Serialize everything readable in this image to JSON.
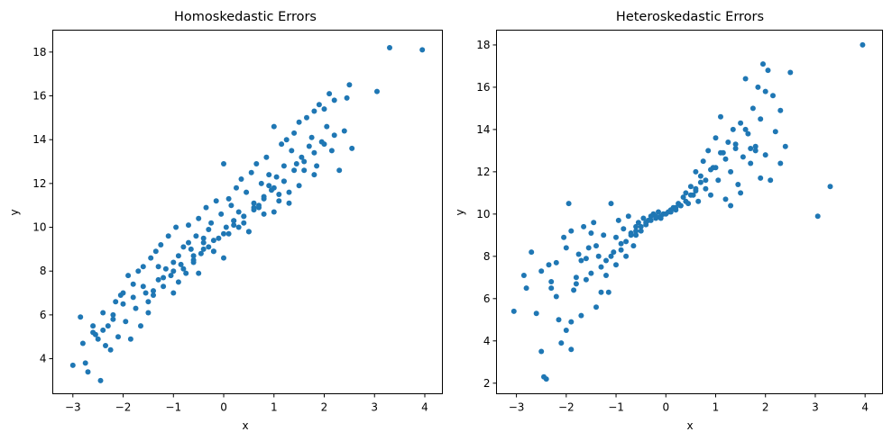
{
  "chart_data": [
    {
      "type": "scatter",
      "title": "Homoskedastic Errors",
      "xlabel": "x",
      "ylabel": "y",
      "xlim": [
        -3.4,
        4.35
      ],
      "ylim": [
        2.4,
        19.0
      ],
      "xticks": [
        -3,
        -2,
        -1,
        0,
        1,
        2,
        3,
        4
      ],
      "yticks": [
        4,
        6,
        8,
        10,
        12,
        14,
        16,
        18
      ],
      "color": "#1f77b4",
      "grid": false,
      "series": [
        {
          "x": [
            -3.0,
            -2.85,
            -2.75,
            -2.7,
            -2.6,
            -2.55,
            -2.5,
            -2.45,
            -2.4,
            -2.35,
            -2.3,
            -2.25,
            -2.2,
            -2.15,
            -2.1,
            -2.05,
            -2.0,
            -1.95,
            -1.9,
            -1.85,
            -1.8,
            -1.75,
            -1.7,
            -1.65,
            -1.6,
            -1.55,
            -1.5,
            -1.45,
            -1.4,
            -1.35,
            -1.3,
            -1.25,
            -1.2,
            -1.15,
            -1.1,
            -1.05,
            -1.0,
            -0.95,
            -0.9,
            -0.85,
            -0.8,
            -0.75,
            -0.7,
            -0.65,
            -0.6,
            -0.55,
            -0.5,
            -0.45,
            -0.4,
            -0.35,
            -0.3,
            -0.25,
            -0.2,
            -0.15,
            -0.1,
            -0.05,
            0.0,
            0.05,
            0.1,
            0.15,
            0.2,
            0.25,
            0.3,
            0.35,
            0.4,
            0.45,
            0.5,
            0.55,
            0.6,
            0.65,
            0.7,
            0.75,
            0.8,
            0.85,
            0.9,
            0.95,
            1.0,
            1.05,
            1.1,
            1.15,
            1.2,
            1.25,
            1.3,
            1.35,
            1.4,
            1.45,
            1.5,
            1.55,
            1.6,
            1.65,
            1.7,
            1.75,
            1.8,
            1.85,
            1.9,
            1.95,
            2.0,
            2.05,
            2.1,
            2.15,
            2.2,
            2.3,
            2.4,
            2.45,
            2.5,
            2.55,
            3.05,
            3.3,
            3.95,
            -2.8,
            -2.6,
            -2.4,
            -2.2,
            -2.0,
            -1.8,
            -1.6,
            -1.4,
            -1.2,
            -1.0,
            -0.8,
            -0.6,
            -0.4,
            -0.2,
            0.0,
            0.2,
            0.4,
            0.6,
            0.8,
            1.0,
            1.2,
            1.4,
            1.6,
            1.8,
            2.0,
            2.2,
            -1.5,
            -1.0,
            -0.5,
            0.0,
            0.5,
            1.0,
            1.5,
            -1.3,
            -0.7,
            -0.2,
            0.3,
            0.8,
            1.3,
            1.8,
            -0.9,
            -0.3,
            0.2,
            0.7,
            1.2,
            -0.6,
            0.1,
            0.6,
            1.1,
            -0.4,
            0.4,
            0.9
          ],
          "y": [
            3.7,
            5.9,
            3.8,
            3.4,
            5.5,
            5.1,
            4.9,
            3.0,
            5.3,
            4.6,
            5.5,
            4.4,
            6.0,
            6.6,
            5.0,
            6.9,
            7.0,
            5.7,
            7.8,
            4.9,
            7.4,
            6.3,
            8.0,
            5.5,
            8.2,
            7.0,
            6.6,
            8.6,
            6.9,
            8.9,
            7.6,
            9.2,
            7.3,
            8.1,
            9.6,
            7.8,
            8.4,
            10.0,
            8.7,
            8.3,
            9.1,
            7.9,
            10.1,
            9.0,
            8.5,
            9.6,
            10.4,
            8.8,
            9.3,
            10.9,
            9.9,
            10.2,
            8.9,
            11.2,
            9.5,
            10.6,
            12.9,
            10.0,
            11.3,
            11.0,
            10.3,
            11.8,
            10.7,
            12.2,
            10.5,
            11.6,
            9.8,
            12.5,
            11.1,
            12.9,
            10.9,
            12.0,
            11.4,
            13.2,
            12.4,
            11.7,
            14.6,
            12.3,
            11.2,
            13.8,
            12.8,
            14.0,
            11.6,
            13.5,
            14.3,
            12.9,
            14.8,
            13.2,
            12.6,
            15.0,
            13.7,
            14.1,
            15.3,
            12.8,
            15.6,
            13.9,
            15.4,
            14.6,
            16.1,
            13.5,
            15.8,
            12.6,
            14.4,
            15.9,
            16.5,
            13.6,
            16.2,
            18.2,
            18.1,
            4.7,
            5.2,
            6.1,
            5.8,
            6.5,
            6.8,
            7.3,
            7.1,
            7.7,
            8.0,
            8.1,
            8.7,
            9.0,
            9.4,
            9.7,
            10.1,
            10.5,
            10.9,
            11.3,
            11.8,
            12.1,
            12.6,
            13.0,
            13.4,
            13.8,
            14.2,
            6.1,
            7.0,
            7.9,
            8.6,
            9.8,
            10.7,
            11.9,
            8.2,
            9.3,
            8.9,
            10.0,
            10.6,
            11.1,
            12.4,
            7.5,
            9.1,
            10.3,
            11.0,
            12.1,
            8.4,
            9.7,
            10.8,
            11.5,
            9.5,
            10.2,
            11.9
          ]
        }
      ]
    },
    {
      "type": "scatter",
      "title": "Heteroskedastic Errors",
      "xlabel": "x",
      "ylabel": "y",
      "xlim": [
        -3.4,
        4.35
      ],
      "ylim": [
        1.5,
        18.7
      ],
      "xticks": [
        -3,
        -2,
        -1,
        0,
        1,
        2,
        3,
        4
      ],
      "yticks": [
        2,
        4,
        6,
        8,
        10,
        12,
        14,
        16,
        18
      ],
      "color": "#1f77b4",
      "grid": false,
      "series": [
        {
          "x": [
            -3.05,
            -2.85,
            -2.8,
            -2.7,
            -2.6,
            -2.5,
            -2.45,
            -2.4,
            -2.35,
            -2.3,
            -2.2,
            -2.15,
            -2.1,
            -2.05,
            -2.0,
            -1.95,
            -1.9,
            -1.9,
            -1.85,
            -1.8,
            -1.75,
            -1.7,
            -1.65,
            -1.6,
            -1.55,
            -1.5,
            -1.45,
            -1.4,
            -1.35,
            -1.3,
            -1.25,
            -1.2,
            -1.15,
            -1.1,
            -1.05,
            -1.0,
            -0.95,
            -0.9,
            -0.85,
            -0.8,
            -0.75,
            -0.7,
            -0.65,
            -0.6,
            -0.55,
            -0.5,
            -0.45,
            -0.4,
            -0.35,
            -0.3,
            -0.25,
            -0.2,
            -0.15,
            -0.1,
            -0.05,
            0.0,
            0.05,
            0.1,
            0.15,
            0.2,
            0.25,
            0.3,
            0.35,
            0.4,
            0.45,
            0.5,
            0.55,
            0.6,
            0.65,
            0.7,
            0.75,
            0.8,
            0.85,
            0.9,
            0.95,
            1.0,
            1.05,
            1.1,
            1.15,
            1.2,
            1.25,
            1.3,
            1.35,
            1.4,
            1.45,
            1.5,
            1.55,
            1.6,
            1.65,
            1.7,
            1.75,
            1.8,
            1.85,
            1.9,
            1.95,
            2.0,
            2.05,
            2.1,
            2.15,
            2.2,
            2.3,
            2.4,
            2.5,
            3.05,
            3.3,
            3.95,
            -2.5,
            -2.2,
            -2.0,
            -1.8,
            -1.6,
            -1.4,
            -1.2,
            -1.0,
            -0.8,
            -0.6,
            -0.4,
            -0.2,
            0.2,
            0.4,
            0.6,
            0.8,
            1.0,
            1.2,
            1.4,
            1.6,
            1.8,
            2.0,
            -1.7,
            -1.3,
            -0.9,
            -0.5,
            0.5,
            0.9,
            1.3,
            1.7,
            -1.1,
            -0.7,
            -0.3,
            0.3,
            0.7,
            1.1,
            -0.6,
            -0.1,
            0.1,
            0.6,
            -1.5,
            1.5,
            -2.3,
            2.3,
            -1.9,
            1.9
          ],
          "y": [
            5.4,
            7.1,
            6.5,
            8.2,
            5.3,
            3.5,
            2.3,
            2.2,
            7.6,
            6.8,
            7.7,
            5.0,
            3.9,
            8.9,
            4.5,
            10.5,
            3.6,
            9.2,
            6.4,
            7.0,
            8.1,
            5.2,
            9.4,
            6.9,
            8.4,
            7.2,
            9.6,
            5.6,
            8.0,
            7.5,
            9.0,
            7.8,
            6.3,
            10.5,
            8.2,
            7.6,
            9.7,
            8.6,
            9.3,
            8.0,
            9.9,
            9.1,
            8.5,
            9.4,
            9.6,
            9.2,
            9.8,
            9.5,
            9.7,
            9.9,
            10.0,
            9.8,
            10.1,
            9.9,
            10.0,
            10.0,
            10.1,
            10.2,
            10.3,
            10.2,
            10.5,
            10.4,
            10.8,
            11.0,
            10.5,
            11.3,
            10.9,
            12.0,
            10.6,
            11.8,
            12.5,
            11.2,
            13.0,
            10.9,
            12.2,
            13.6,
            11.6,
            14.6,
            12.9,
            10.7,
            13.4,
            12.0,
            14.0,
            13.1,
            11.4,
            14.3,
            12.7,
            16.4,
            13.8,
            12.4,
            15.0,
            13.2,
            16.0,
            14.5,
            17.1,
            12.8,
            16.8,
            11.6,
            15.6,
            13.9,
            14.9,
            13.2,
            16.7,
            9.9,
            11.3,
            18.0,
            7.3,
            6.1,
            8.4,
            6.7,
            7.9,
            8.5,
            7.1,
            8.9,
            8.7,
            9.2,
            9.6,
            9.9,
            10.3,
            10.6,
            11.1,
            11.6,
            12.2,
            12.6,
            13.3,
            14.0,
            13.0,
            15.8,
            7.8,
            6.3,
            8.3,
            9.4,
            10.9,
            12.1,
            10.4,
            13.1,
            8.0,
            9.0,
            9.7,
            10.4,
            11.5,
            12.9,
            9.0,
            9.8,
            10.1,
            11.2,
            9.1,
            11.0,
            6.5,
            12.4,
            4.9,
            11.7
          ]
        }
      ]
    }
  ]
}
